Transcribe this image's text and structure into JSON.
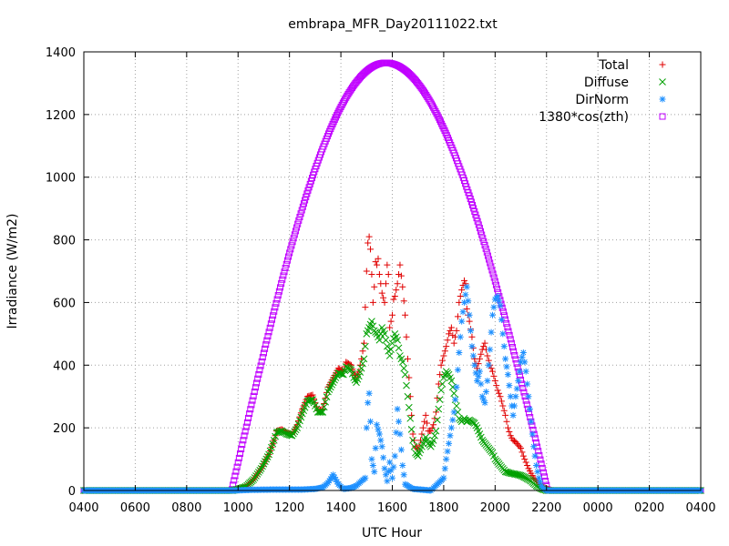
{
  "chart_data": {
    "type": "scatter",
    "title": "embrapa_MFR_Day20111022.txt",
    "xlabel": "UTC Hour",
    "ylabel": "Irradiance (W/m2)",
    "grid": true,
    "legend_position": "top-right",
    "xlim": [
      4,
      28
    ],
    "ylim": [
      0,
      1400
    ],
    "x_ticks": [
      {
        "value": 4,
        "label": "0400"
      },
      {
        "value": 6,
        "label": "0600"
      },
      {
        "value": 8,
        "label": "0800"
      },
      {
        "value": 10,
        "label": "1000"
      },
      {
        "value": 12,
        "label": "1200"
      },
      {
        "value": 14,
        "label": "1400"
      },
      {
        "value": 16,
        "label": "1600"
      },
      {
        "value": 18,
        "label": "1800"
      },
      {
        "value": 20,
        "label": "2000"
      },
      {
        "value": 22,
        "label": "2200"
      },
      {
        "value": 24,
        "label": "0000"
      },
      {
        "value": 26,
        "label": "0200"
      },
      {
        "value": 28,
        "label": "0400"
      }
    ],
    "y_ticks": [
      0,
      200,
      400,
      600,
      800,
      1000,
      1200,
      1400
    ],
    "series": [
      {
        "name": "Total",
        "marker": "plus",
        "color": "#e00000",
        "points": [
          [
            4.0,
            0
          ],
          [
            9.8,
            0
          ],
          [
            10.0,
            4
          ],
          [
            10.3,
            12
          ],
          [
            10.6,
            35
          ],
          [
            10.9,
            70
          ],
          [
            11.2,
            115
          ],
          [
            11.4,
            160
          ],
          [
            11.5,
            190
          ],
          [
            11.7,
            195
          ],
          [
            11.9,
            185
          ],
          [
            12.1,
            180
          ],
          [
            12.3,
            210
          ],
          [
            12.5,
            260
          ],
          [
            12.7,
            300
          ],
          [
            12.9,
            305
          ],
          [
            13.1,
            255
          ],
          [
            13.3,
            260
          ],
          [
            13.5,
            330
          ],
          [
            13.7,
            360
          ],
          [
            13.9,
            390
          ],
          [
            14.1,
            380
          ],
          [
            14.2,
            410
          ],
          [
            14.4,
            400
          ],
          [
            14.5,
            375
          ],
          [
            14.6,
            360
          ],
          [
            14.7,
            380
          ],
          [
            14.8,
            420
          ],
          [
            14.9,
            470
          ],
          [
            15.0,
            700
          ],
          [
            15.05,
            790
          ],
          [
            15.1,
            810
          ],
          [
            15.15,
            770
          ],
          [
            15.2,
            690
          ],
          [
            15.25,
            600
          ],
          [
            15.3,
            650
          ],
          [
            15.35,
            730
          ],
          [
            15.4,
            720
          ],
          [
            15.45,
            740
          ],
          [
            15.5,
            690
          ],
          [
            15.6,
            630
          ],
          [
            15.7,
            600
          ],
          [
            15.75,
            660
          ],
          [
            15.8,
            720
          ],
          [
            15.85,
            690
          ],
          [
            15.9,
            520
          ],
          [
            16.0,
            560
          ],
          [
            16.05,
            610
          ],
          [
            16.1,
            620
          ],
          [
            16.2,
            660
          ],
          [
            16.3,
            720
          ],
          [
            16.4,
            650
          ],
          [
            16.5,
            560
          ],
          [
            16.6,
            420
          ],
          [
            16.7,
            300
          ],
          [
            16.8,
            180
          ],
          [
            16.9,
            140
          ],
          [
            17.0,
            130
          ],
          [
            17.1,
            160
          ],
          [
            17.2,
            200
          ],
          [
            17.3,
            240
          ],
          [
            17.4,
            190
          ],
          [
            17.5,
            190
          ],
          [
            17.6,
            210
          ],
          [
            17.7,
            250
          ],
          [
            17.8,
            340
          ],
          [
            17.9,
            400
          ],
          [
            18.0,
            430
          ],
          [
            18.1,
            460
          ],
          [
            18.2,
            500
          ],
          [
            18.3,
            520
          ],
          [
            18.4,
            470
          ],
          [
            18.5,
            510
          ],
          [
            18.6,
            600
          ],
          [
            18.7,
            640
          ],
          [
            18.8,
            670
          ],
          [
            18.85,
            660
          ],
          [
            18.9,
            580
          ],
          [
            19.0,
            540
          ],
          [
            19.1,
            490
          ],
          [
            19.2,
            420
          ],
          [
            19.3,
            390
          ],
          [
            19.4,
            420
          ],
          [
            19.5,
            450
          ],
          [
            19.6,
            470
          ],
          [
            19.7,
            430
          ],
          [
            19.8,
            400
          ],
          [
            19.9,
            380
          ],
          [
            20.0,
            350
          ],
          [
            20.1,
            320
          ],
          [
            20.2,
            300
          ],
          [
            20.3,
            270
          ],
          [
            20.4,
            240
          ],
          [
            20.5,
            200
          ],
          [
            20.6,
            175
          ],
          [
            20.7,
            160
          ],
          [
            20.8,
            155
          ],
          [
            20.9,
            145
          ],
          [
            21.0,
            135
          ],
          [
            21.1,
            110
          ],
          [
            21.2,
            90
          ],
          [
            21.3,
            70
          ],
          [
            21.5,
            40
          ],
          [
            21.8,
            15
          ],
          [
            22.1,
            2
          ],
          [
            22.3,
            0
          ],
          [
            28.0,
            0
          ]
        ]
      },
      {
        "name": "Diffuse",
        "marker": "cross",
        "color": "#00a000",
        "points": [
          [
            4.0,
            0
          ],
          [
            9.8,
            0
          ],
          [
            10.0,
            4
          ],
          [
            10.3,
            12
          ],
          [
            10.6,
            35
          ],
          [
            10.9,
            70
          ],
          [
            11.2,
            115
          ],
          [
            11.4,
            160
          ],
          [
            11.5,
            185
          ],
          [
            11.7,
            190
          ],
          [
            11.9,
            180
          ],
          [
            12.1,
            175
          ],
          [
            12.3,
            200
          ],
          [
            12.5,
            245
          ],
          [
            12.7,
            285
          ],
          [
            12.9,
            290
          ],
          [
            13.1,
            250
          ],
          [
            13.3,
            250
          ],
          [
            13.5,
            315
          ],
          [
            13.7,
            345
          ],
          [
            13.9,
            375
          ],
          [
            14.1,
            370
          ],
          [
            14.2,
            395
          ],
          [
            14.4,
            385
          ],
          [
            14.5,
            360
          ],
          [
            14.6,
            345
          ],
          [
            14.7,
            365
          ],
          [
            14.8,
            390
          ],
          [
            14.9,
            420
          ],
          [
            15.0,
            500
          ],
          [
            15.1,
            520
          ],
          [
            15.2,
            540
          ],
          [
            15.3,
            510
          ],
          [
            15.4,
            500
          ],
          [
            15.5,
            480
          ],
          [
            15.6,
            520
          ],
          [
            15.7,
            500
          ],
          [
            15.8,
            460
          ],
          [
            15.9,
            430
          ],
          [
            16.0,
            470
          ],
          [
            16.1,
            500
          ],
          [
            16.2,
            480
          ],
          [
            16.3,
            430
          ],
          [
            16.4,
            410
          ],
          [
            16.5,
            370
          ],
          [
            16.6,
            300
          ],
          [
            16.7,
            230
          ],
          [
            16.8,
            160
          ],
          [
            16.9,
            120
          ],
          [
            17.0,
            110
          ],
          [
            17.1,
            130
          ],
          [
            17.2,
            150
          ],
          [
            17.3,
            170
          ],
          [
            17.4,
            150
          ],
          [
            17.5,
            140
          ],
          [
            17.6,
            160
          ],
          [
            17.7,
            190
          ],
          [
            17.8,
            260
          ],
          [
            17.9,
            320
          ],
          [
            18.0,
            360
          ],
          [
            18.1,
            380
          ],
          [
            18.2,
            370
          ],
          [
            18.3,
            350
          ],
          [
            18.4,
            310
          ],
          [
            18.5,
            270
          ],
          [
            18.6,
            230
          ],
          [
            18.7,
            220
          ],
          [
            18.8,
            230
          ],
          [
            18.9,
            220
          ],
          [
            19.0,
            225
          ],
          [
            19.1,
            220
          ],
          [
            19.2,
            215
          ],
          [
            19.3,
            200
          ],
          [
            19.4,
            180
          ],
          [
            19.5,
            160
          ],
          [
            19.6,
            150
          ],
          [
            19.7,
            140
          ],
          [
            19.8,
            130
          ],
          [
            19.9,
            120
          ],
          [
            20.0,
            100
          ],
          [
            20.2,
            80
          ],
          [
            20.4,
            60
          ],
          [
            20.6,
            55
          ],
          [
            20.8,
            52
          ],
          [
            21.0,
            48
          ],
          [
            21.2,
            40
          ],
          [
            21.4,
            30
          ],
          [
            21.6,
            15
          ],
          [
            21.8,
            5
          ],
          [
            22.0,
            0
          ],
          [
            28.0,
            0
          ]
        ]
      },
      {
        "name": "DirNorm",
        "marker": "star",
        "color": "#1e90ff",
        "points": [
          [
            4.0,
            0
          ],
          [
            9.8,
            0
          ],
          [
            10.5,
            2
          ],
          [
            11.5,
            3
          ],
          [
            12.5,
            3
          ],
          [
            13.0,
            5
          ],
          [
            13.3,
            10
          ],
          [
            13.5,
            25
          ],
          [
            13.7,
            50
          ],
          [
            13.9,
            20
          ],
          [
            14.1,
            5
          ],
          [
            14.4,
            8
          ],
          [
            14.6,
            15
          ],
          [
            14.8,
            30
          ],
          [
            14.95,
            40
          ],
          [
            15.0,
            200
          ],
          [
            15.05,
            280
          ],
          [
            15.1,
            310
          ],
          [
            15.15,
            220
          ],
          [
            15.2,
            100
          ],
          [
            15.3,
            60
          ],
          [
            15.4,
            210
          ],
          [
            15.5,
            180
          ],
          [
            15.6,
            140
          ],
          [
            15.7,
            70
          ],
          [
            15.8,
            30
          ],
          [
            15.9,
            90
          ],
          [
            16.0,
            40
          ],
          [
            16.1,
            110
          ],
          [
            16.2,
            260
          ],
          [
            16.3,
            180
          ],
          [
            16.4,
            80
          ],
          [
            16.5,
            20
          ],
          [
            16.8,
            5
          ],
          [
            17.5,
            0
          ],
          [
            18.0,
            40
          ],
          [
            18.1,
            100
          ],
          [
            18.2,
            150
          ],
          [
            18.3,
            200
          ],
          [
            18.4,
            250
          ],
          [
            18.5,
            330
          ],
          [
            18.6,
            440
          ],
          [
            18.7,
            540
          ],
          [
            18.8,
            600
          ],
          [
            18.9,
            650
          ],
          [
            19.0,
            560
          ],
          [
            19.1,
            460
          ],
          [
            19.2,
            400
          ],
          [
            19.3,
            350
          ],
          [
            19.4,
            380
          ],
          [
            19.5,
            300
          ],
          [
            19.6,
            280
          ],
          [
            19.7,
            350
          ],
          [
            19.8,
            450
          ],
          [
            19.9,
            560
          ],
          [
            20.0,
            610
          ],
          [
            20.1,
            620
          ],
          [
            20.2,
            590
          ],
          [
            20.3,
            500
          ],
          [
            20.4,
            420
          ],
          [
            20.5,
            370
          ],
          [
            20.6,
            300
          ],
          [
            20.7,
            240
          ],
          [
            20.8,
            300
          ],
          [
            20.9,
            350
          ],
          [
            21.0,
            410
          ],
          [
            21.1,
            440
          ],
          [
            21.2,
            380
          ],
          [
            21.3,
            300
          ],
          [
            21.4,
            220
          ],
          [
            21.5,
            140
          ],
          [
            21.6,
            80
          ],
          [
            21.7,
            40
          ],
          [
            21.8,
            15
          ],
          [
            21.9,
            5
          ],
          [
            22.0,
            0
          ],
          [
            28.0,
            0
          ]
        ]
      },
      {
        "name": "1380*cos(zth)",
        "marker": "square",
        "color": "#c000ff",
        "curve": {
          "peak": 1365,
          "peak_x": 15.75,
          "start_x": 9.75,
          "end_x": 22.05
        }
      }
    ]
  }
}
